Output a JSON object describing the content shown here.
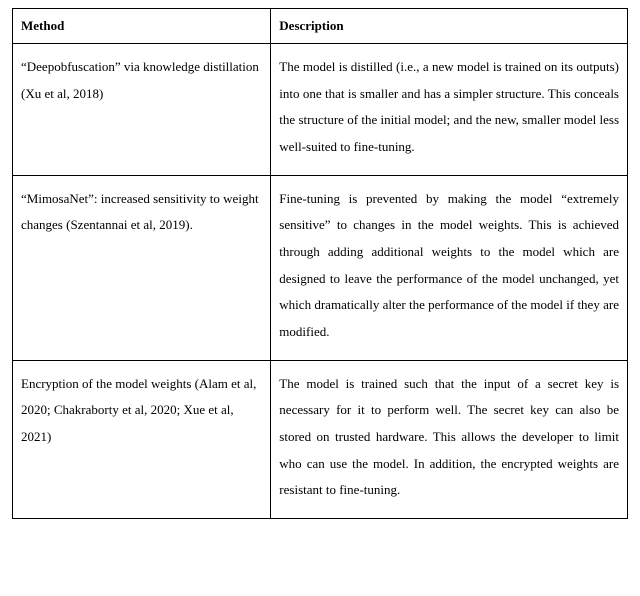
{
  "table": {
    "headers": {
      "method": "Method",
      "description": "Description"
    },
    "rows": [
      {
        "method": "“Deepobfuscation” via knowledge distillation (Xu et al, 2018)",
        "description": "The model is distilled (i.e., a new model is trained on its outputs) into one that is smaller and has a simpler structure. This conceals the structure of the initial model; and the new, smaller model less well-suited to fine-tuning."
      },
      {
        "method": "“MimosaNet”: increased sensitivity to weight changes (Szentannai et al, 2019).",
        "description": "Fine-tuning is prevented by making the model “extremely sensitive” to changes in the model weights. This is achieved through adding additional weights to the model which are designed to leave the performance of the model unchanged, yet which dramatically alter the performance of the model if they are modified."
      },
      {
        "method": "Encryption of the model weights (Alam et al, 2020; Chakraborty et al, 2020; Xue et al, 2021)",
        "description": "The model is trained such that the input of a secret key is necessary for it to perform well. The secret key can also be stored on trusted hardware. This allows the developer to limit who can use the model. In addition, the encrypted weights are resistant to fine-tuning."
      }
    ]
  }
}
